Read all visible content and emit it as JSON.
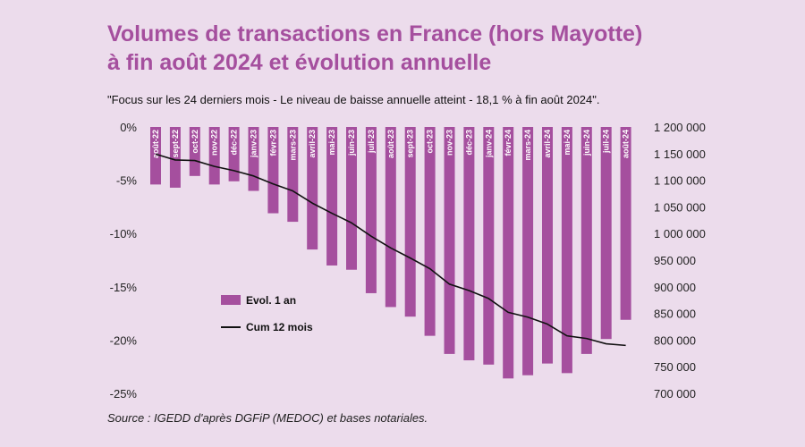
{
  "title_line1": "Volumes de transactions en France (hors Mayotte)",
  "title_line2": "à fin août 2024 et évolution annuelle",
  "subtitle": "\"Focus sur les 24 derniers mois - Le niveau de baisse annuelle atteint - 18,1 % à fin août 2024\".",
  "source": "Source : IGEDD d'après DGFiP (MEDOC) et bases notariales.",
  "chart_data": {
    "type": "bar",
    "categories": [
      "août-22",
      "sept-22",
      "oct-22",
      "nov-22",
      "déc-22",
      "janv-23",
      "févr-23",
      "mars-23",
      "avr-23",
      "mai-23",
      "juin-23",
      "juil-23",
      "août-23",
      "sept-23",
      "oct-23",
      "nov-23",
      "déc-23",
      "janv-24",
      "févr-24",
      "mars-24",
      "avr-24",
      "mai-24",
      "juin-24",
      "juil-24",
      "août-24"
    ],
    "category_labels": [
      "août-22",
      "sept-22",
      "oct-22",
      "nov-22",
      "déc-22",
      "janv-23",
      "févr-23",
      "mars-23",
      "avril-23",
      "mai-23",
      "juin-23",
      "juil-23",
      "août-23",
      "sept-23",
      "oct-23",
      "nov-23",
      "déc-23",
      "janv-24",
      "févr-24",
      "mars-24",
      "avril-24",
      "mai-24",
      "juin-24",
      "juil-24",
      "août-24"
    ],
    "series": [
      {
        "name": "Evol. 1 an",
        "axis": "left",
        "type": "bar",
        "color": "#a54f9e",
        "values": [
          -5.4,
          -5.7,
          -4.6,
          -5.4,
          -5.1,
          -6.0,
          -8.1,
          -8.9,
          -11.5,
          -13.0,
          -13.4,
          -15.6,
          -16.9,
          -17.8,
          -19.6,
          -21.3,
          -21.9,
          -22.3,
          -23.6,
          -23.3,
          -22.2,
          -23.1,
          -21.3,
          -19.9,
          -18.1
        ]
      },
      {
        "name": "Cum 12 mois",
        "axis": "right",
        "type": "line",
        "color": "#111111",
        "values": [
          1149000,
          1138000,
          1137000,
          1126000,
          1118000,
          1108000,
          1093000,
          1080000,
          1057000,
          1038000,
          1020000,
          995000,
          973000,
          954000,
          934000,
          905000,
          893000,
          878000,
          852000,
          843000,
          830000,
          808000,
          803000,
          793000,
          790000
        ]
      }
    ],
    "y_left": {
      "min": -25,
      "max": 0,
      "ticks": [
        "0%",
        "-5%",
        "-10%",
        "-15%",
        "-20%",
        "-25%"
      ]
    },
    "y_right": {
      "min": 700000,
      "max": 1200000,
      "ticks": [
        "1 200 000",
        "1 150 000",
        "1 100 000",
        "1 050 000",
        "1 000 000",
        "950 000",
        "900 000",
        "850 000",
        "800 000",
        "750 000",
        "700 000"
      ]
    },
    "legend": [
      {
        "label": "Evol. 1 an",
        "kind": "bar",
        "color": "#a54f9e"
      },
      {
        "label": "Cum 12 mois",
        "kind": "line",
        "color": "#111111"
      }
    ],
    "legend_position": "lower-left"
  }
}
